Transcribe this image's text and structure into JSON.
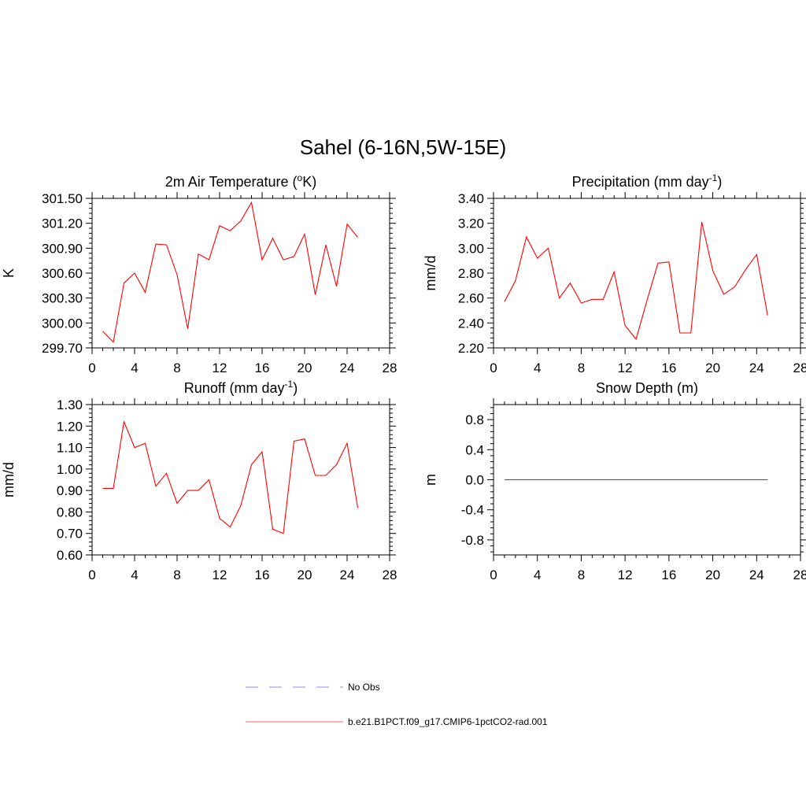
{
  "title": "Sahel (6-16N,5W-15E)",
  "colors": {
    "model": "#ff0000",
    "obs": "#a0a0ff"
  },
  "legend": [
    {
      "label": "No Obs",
      "style": "dashed",
      "color": "#a0a0ff"
    },
    {
      "label": "b.e21.B1PCT.f09_g17.CMIP6-1pctCO2-rad.001",
      "style": "solid",
      "color": "#ff0000"
    }
  ],
  "chart_data": [
    {
      "type": "line",
      "title": "2m Air Temperature (",
      "title_sup": "o",
      "title_suffix": "K)",
      "ylabel": "K",
      "xlim": [
        0,
        28
      ],
      "ylim": [
        299.7,
        301.5
      ],
      "xticks": [
        0,
        4,
        8,
        12,
        16,
        20,
        24,
        28
      ],
      "yticks": [
        299.7,
        300.0,
        300.3,
        300.6,
        300.9,
        301.2,
        301.5
      ],
      "ytick_labels": [
        "299.70",
        "300.00",
        "300.30",
        "300.60",
        "300.90",
        "301.20",
        "301.50"
      ],
      "x": [
        1,
        2,
        3,
        4,
        5,
        6,
        7,
        8,
        9,
        10,
        11,
        12,
        13,
        14,
        15,
        16,
        17,
        18,
        19,
        20,
        21,
        22,
        23,
        24,
        25
      ],
      "series": [
        {
          "values": [
            299.9,
            299.77,
            300.48,
            300.6,
            300.37,
            300.95,
            300.94,
            300.58,
            299.93,
            300.83,
            300.76,
            301.17,
            301.11,
            301.23,
            301.45,
            300.76,
            301.02,
            300.76,
            300.8,
            301.07,
            300.34,
            300.94,
            300.44,
            301.19,
            301.03
          ]
        }
      ]
    },
    {
      "type": "line",
      "title": "Precipitation (mm day",
      "title_sup": "-1",
      "title_suffix": ")",
      "ylabel": "mm/d",
      "xlim": [
        0,
        28
      ],
      "ylim": [
        2.2,
        3.4
      ],
      "xticks": [
        0,
        4,
        8,
        12,
        16,
        20,
        24,
        28
      ],
      "yticks": [
        2.2,
        2.4,
        2.6,
        2.8,
        3.0,
        3.2,
        3.4
      ],
      "ytick_labels": [
        "2.20",
        "2.40",
        "2.60",
        "2.80",
        "3.00",
        "3.20",
        "3.40"
      ],
      "x": [
        1,
        2,
        3,
        4,
        5,
        6,
        7,
        8,
        9,
        10,
        11,
        12,
        13,
        14,
        15,
        16,
        17,
        18,
        19,
        20,
        21,
        22,
        23,
        24,
        25
      ],
      "series": [
        {
          "values": [
            2.57,
            2.74,
            3.09,
            2.92,
            3.0,
            2.6,
            2.72,
            2.56,
            2.59,
            2.59,
            2.81,
            2.38,
            2.27,
            2.58,
            2.88,
            2.89,
            2.32,
            2.32,
            3.21,
            2.82,
            2.63,
            2.69,
            2.83,
            2.95,
            2.46
          ]
        }
      ]
    },
    {
      "type": "line",
      "title": "Runoff (mm day",
      "title_sup": "-1",
      "title_suffix": ")",
      "ylabel": "mm/d",
      "xlim": [
        0,
        28
      ],
      "ylim": [
        0.6,
        1.3
      ],
      "xticks": [
        0,
        4,
        8,
        12,
        16,
        20,
        24,
        28
      ],
      "yticks": [
        0.6,
        0.7,
        0.8,
        0.9,
        1.0,
        1.1,
        1.2,
        1.3
      ],
      "ytick_labels": [
        "0.60",
        "0.70",
        "0.80",
        "0.90",
        "1.00",
        "1.10",
        "1.20",
        "1.30"
      ],
      "x": [
        1,
        2,
        3,
        4,
        5,
        6,
        7,
        8,
        9,
        10,
        11,
        12,
        13,
        14,
        15,
        16,
        17,
        18,
        19,
        20,
        21,
        22,
        23,
        24,
        25
      ],
      "series": [
        {
          "values": [
            0.91,
            0.91,
            1.22,
            1.1,
            1.12,
            0.92,
            0.98,
            0.84,
            0.9,
            0.9,
            0.95,
            0.77,
            0.73,
            0.83,
            1.02,
            1.08,
            0.72,
            0.7,
            1.13,
            1.14,
            0.97,
            0.97,
            1.02,
            1.12,
            0.82
          ]
        }
      ]
    },
    {
      "type": "line",
      "title": "Snow Depth (m)",
      "title_sup": "",
      "title_suffix": "",
      "ylabel": "m",
      "xlim": [
        0,
        28
      ],
      "ylim": [
        -1.0,
        1.0
      ],
      "xticks": [
        0,
        4,
        8,
        12,
        16,
        20,
        24,
        28
      ],
      "yticks": [
        -0.8,
        -0.4,
        0.0,
        0.4,
        0.8
      ],
      "ytick_labels": [
        "-0.8",
        "-0.4",
        "0.0",
        "0.4",
        "0.8"
      ],
      "x": [
        1,
        25
      ],
      "series": [
        {
          "values": [
            0.0,
            0.0
          ]
        }
      ]
    }
  ]
}
